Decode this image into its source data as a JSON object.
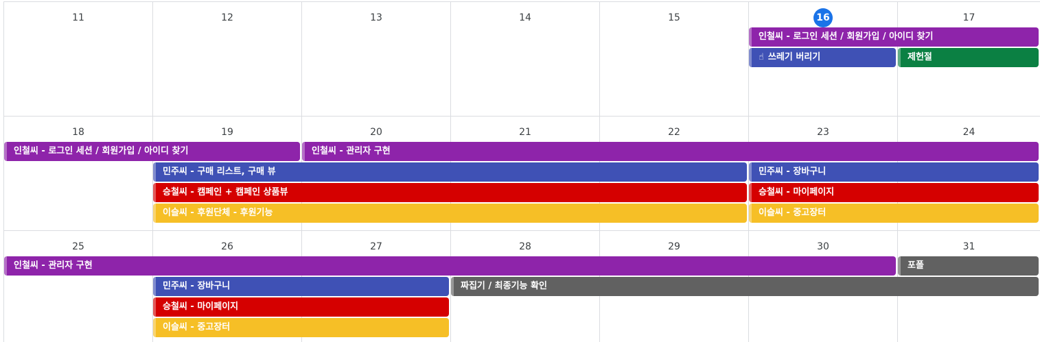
{
  "colors": {
    "purple": "#8e24aa",
    "blue": "#3f51b5",
    "red": "#d50000",
    "yellow": "#f6bf26",
    "green": "#0b8043",
    "gray": "#616161",
    "today": "#1a73e8"
  },
  "weeks": [
    {
      "days": [
        "11",
        "12",
        "13",
        "14",
        "15",
        "16",
        "17"
      ],
      "today_index": 5,
      "events": [
        {
          "title": "인철씨 - 로그인 세션 / 회원가입 / 아이디 찾기",
          "start": 5,
          "end": 6,
          "color": "purple"
        },
        {
          "title": "쓰레기 버리기",
          "start": 5,
          "end": 5,
          "color": "blue",
          "icon": "hand-pointer-icon"
        },
        {
          "title": "제헌절",
          "start": 6,
          "end": 6,
          "color": "green"
        }
      ]
    },
    {
      "days": [
        "18",
        "19",
        "20",
        "21",
        "22",
        "23",
        "24"
      ],
      "today_index": -1,
      "events": [
        {
          "title": "인철씨 - 로그인 세션 / 회원가입 / 아이디 찾기",
          "start": 0,
          "end": 1,
          "color": "purple"
        },
        {
          "title": "인철씨 - 관리자 구현",
          "start": 2,
          "end": 6,
          "color": "purple"
        },
        {
          "title": "민주씨 - 구매 리스트, 구매 뷰",
          "start": 1,
          "end": 4,
          "color": "blue"
        },
        {
          "title": "민주씨 - 장바구니",
          "start": 5,
          "end": 6,
          "color": "blue"
        },
        {
          "title": "승철씨 - 캠페인 + 캠페인 상품뷰",
          "start": 1,
          "end": 4,
          "color": "red"
        },
        {
          "title": "승철씨 - 마이페이지",
          "start": 5,
          "end": 6,
          "color": "red"
        },
        {
          "title": "이슬씨 - 후원단체 - 후원기능",
          "start": 1,
          "end": 4,
          "color": "yellow"
        },
        {
          "title": "이슬씨 - 중고장터",
          "start": 5,
          "end": 6,
          "color": "yellow"
        }
      ]
    },
    {
      "days": [
        "25",
        "26",
        "27",
        "28",
        "29",
        "30",
        "31"
      ],
      "today_index": -1,
      "events": [
        {
          "title": "인철씨 - 관리자 구현",
          "start": 0,
          "end": 5,
          "color": "purple"
        },
        {
          "title": "포폴",
          "start": 6,
          "end": 6,
          "color": "gray"
        },
        {
          "title": "민주씨 - 장바구니",
          "start": 1,
          "end": 2,
          "color": "blue"
        },
        {
          "title": "짜집기 / 최종기능 확인",
          "start": 3,
          "end": 6,
          "color": "gray"
        },
        {
          "title": "승철씨 - 마이페이지",
          "start": 1,
          "end": 2,
          "color": "red"
        },
        {
          "title": "이슬씨 - 중고장터",
          "start": 1,
          "end": 2,
          "color": "yellow"
        }
      ]
    }
  ]
}
